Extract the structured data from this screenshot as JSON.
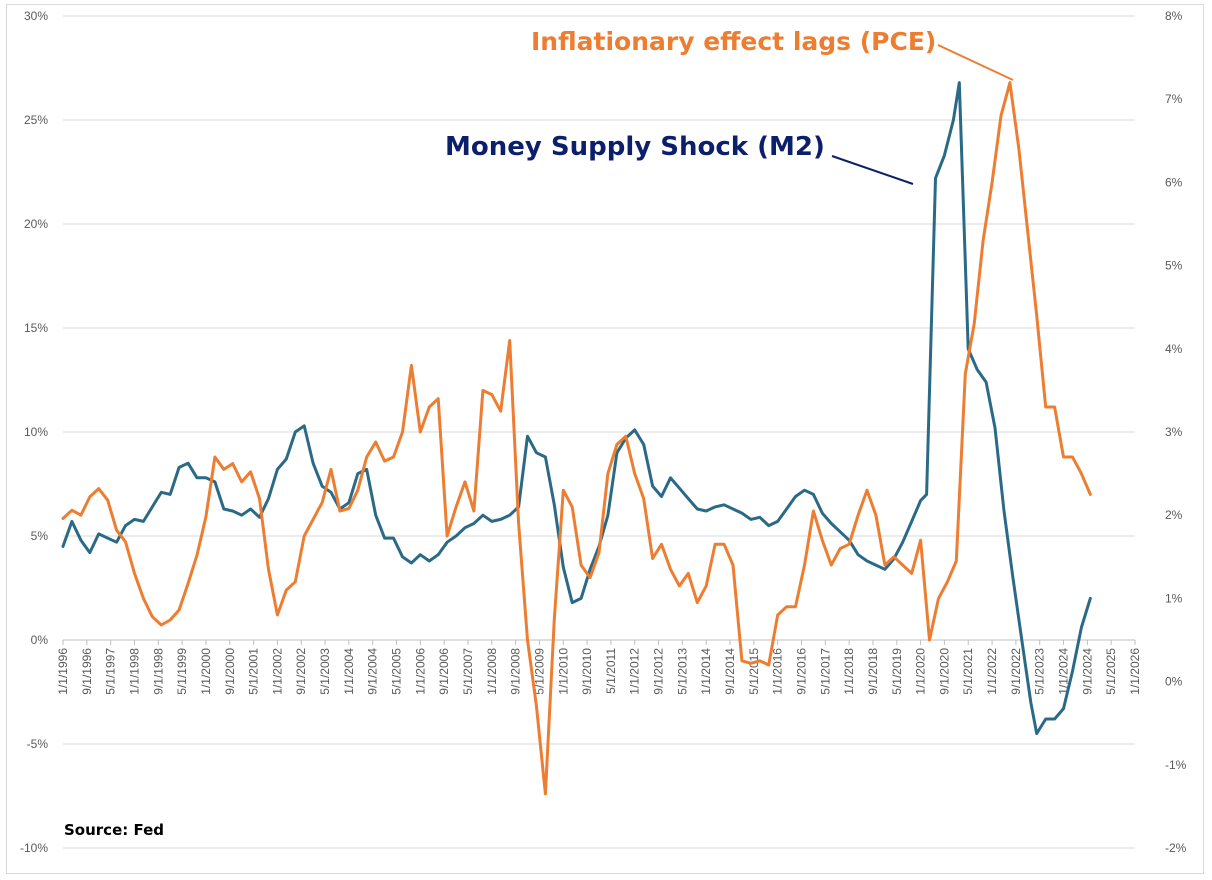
{
  "chart_data": {
    "type": "line",
    "title": "",
    "source": "Source: Fed",
    "grid": true,
    "colors": {
      "m2": "#2b6a87",
      "pce": "#ed7d31",
      "m2_annotation": "#0c1f6b"
    },
    "annotations": {
      "m2": "Money Supply Shock (M2)",
      "pce": "Inflationary effect lags (PCE)"
    },
    "y_left": {
      "min": -0.1,
      "max": 0.3,
      "ticks": [
        -0.1,
        -0.05,
        0.0,
        0.05,
        0.1,
        0.15,
        0.2,
        0.25,
        0.3
      ],
      "tick_labels": [
        "-10%",
        "-5%",
        "0%",
        "5%",
        "10%",
        "15%",
        "20%",
        "25%",
        "30%"
      ]
    },
    "y_right": {
      "min": -0.02,
      "max": 0.08,
      "ticks": [
        -0.02,
        -0.01,
        0.0,
        0.01,
        0.02,
        0.03,
        0.04,
        0.05,
        0.06,
        0.07,
        0.08
      ],
      "tick_labels": [
        "-2%",
        "-1%",
        "0%",
        "1%",
        "2%",
        "3%",
        "4%",
        "5%",
        "6%",
        "7%",
        "8%"
      ]
    },
    "x_axis": {
      "min": "1996-01",
      "max": "2026-01",
      "tick_labels": [
        "1/1/1996",
        "9/1/1996",
        "5/1/1997",
        "1/1/1998",
        "9/1/1998",
        "5/1/1999",
        "1/1/2000",
        "9/1/2000",
        "5/1/2001",
        "1/1/2002",
        "9/1/2002",
        "5/1/2003",
        "1/1/2004",
        "9/1/2004",
        "5/1/2005",
        "1/1/2006",
        "9/1/2006",
        "5/1/2007",
        "1/1/2008",
        "9/1/2008",
        "5/1/2009",
        "1/1/2010",
        "9/1/2010",
        "5/1/2011",
        "1/1/2012",
        "9/1/2012",
        "5/1/2013",
        "1/1/2014",
        "9/1/2014",
        "5/1/2015",
        "1/1/2016",
        "9/1/2016",
        "5/1/2017",
        "1/1/2018",
        "9/1/2018",
        "5/1/2019",
        "1/1/2020",
        "9/1/2020",
        "5/1/2021",
        "1/1/2022",
        "9/1/2022",
        "5/1/2023",
        "1/1/2024",
        "9/1/2024",
        "5/1/2025",
        "1/1/2026"
      ]
    },
    "series": [
      {
        "key": "m2",
        "axis": "left",
        "points": [
          [
            "1996-01",
            0.045
          ],
          [
            "1996-04",
            0.057
          ],
          [
            "1996-07",
            0.048
          ],
          [
            "1996-10",
            0.042
          ],
          [
            "1997-01",
            0.051
          ],
          [
            "1997-04",
            0.049
          ],
          [
            "1997-07",
            0.047
          ],
          [
            "1997-10",
            0.055
          ],
          [
            "1998-01",
            0.058
          ],
          [
            "1998-04",
            0.057
          ],
          [
            "1998-07",
            0.064
          ],
          [
            "1998-10",
            0.071
          ],
          [
            "1999-01",
            0.07
          ],
          [
            "1999-04",
            0.083
          ],
          [
            "1999-07",
            0.085
          ],
          [
            "1999-10",
            0.078
          ],
          [
            "2000-01",
            0.078
          ],
          [
            "2000-04",
            0.076
          ],
          [
            "2000-07",
            0.063
          ],
          [
            "2000-10",
            0.062
          ],
          [
            "2001-01",
            0.06
          ],
          [
            "2001-04",
            0.063
          ],
          [
            "2001-07",
            0.059
          ],
          [
            "2001-10",
            0.068
          ],
          [
            "2002-01",
            0.082
          ],
          [
            "2002-04",
            0.087
          ],
          [
            "2002-07",
            0.1
          ],
          [
            "2002-10",
            0.103
          ],
          [
            "2003-01",
            0.085
          ],
          [
            "2003-04",
            0.074
          ],
          [
            "2003-07",
            0.071
          ],
          [
            "2003-10",
            0.063
          ],
          [
            "2004-01",
            0.066
          ],
          [
            "2004-04",
            0.08
          ],
          [
            "2004-07",
            0.082
          ],
          [
            "2004-10",
            0.06
          ],
          [
            "2005-01",
            0.049
          ],
          [
            "2005-04",
            0.049
          ],
          [
            "2005-07",
            0.04
          ],
          [
            "2005-10",
            0.037
          ],
          [
            "2006-01",
            0.041
          ],
          [
            "2006-04",
            0.038
          ],
          [
            "2006-07",
            0.041
          ],
          [
            "2006-10",
            0.047
          ],
          [
            "2007-01",
            0.05
          ],
          [
            "2007-04",
            0.054
          ],
          [
            "2007-07",
            0.056
          ],
          [
            "2007-10",
            0.06
          ],
          [
            "2008-01",
            0.057
          ],
          [
            "2008-04",
            0.058
          ],
          [
            "2008-07",
            0.06
          ],
          [
            "2008-10",
            0.064
          ],
          [
            "2009-01",
            0.098
          ],
          [
            "2009-04",
            0.09
          ],
          [
            "2009-07",
            0.088
          ],
          [
            "2009-10",
            0.065
          ],
          [
            "2010-01",
            0.035
          ],
          [
            "2010-04",
            0.018
          ],
          [
            "2010-07",
            0.02
          ],
          [
            "2010-10",
            0.034
          ],
          [
            "2011-01",
            0.045
          ],
          [
            "2011-04",
            0.06
          ],
          [
            "2011-07",
            0.09
          ],
          [
            "2011-10",
            0.097
          ],
          [
            "2012-01",
            0.101
          ],
          [
            "2012-04",
            0.094
          ],
          [
            "2012-07",
            0.074
          ],
          [
            "2012-10",
            0.069
          ],
          [
            "2013-01",
            0.078
          ],
          [
            "2013-04",
            0.073
          ],
          [
            "2013-07",
            0.068
          ],
          [
            "2013-10",
            0.063
          ],
          [
            "2014-01",
            0.062
          ],
          [
            "2014-04",
            0.064
          ],
          [
            "2014-07",
            0.065
          ],
          [
            "2014-10",
            0.063
          ],
          [
            "2015-01",
            0.061
          ],
          [
            "2015-04",
            0.058
          ],
          [
            "2015-07",
            0.059
          ],
          [
            "2015-10",
            0.055
          ],
          [
            "2016-01",
            0.057
          ],
          [
            "2016-04",
            0.063
          ],
          [
            "2016-07",
            0.069
          ],
          [
            "2016-10",
            0.072
          ],
          [
            "2017-01",
            0.07
          ],
          [
            "2017-04",
            0.061
          ],
          [
            "2017-07",
            0.056
          ],
          [
            "2017-10",
            0.052
          ],
          [
            "2018-01",
            0.048
          ],
          [
            "2018-04",
            0.041
          ],
          [
            "2018-07",
            0.038
          ],
          [
            "2018-10",
            0.036
          ],
          [
            "2019-01",
            0.034
          ],
          [
            "2019-04",
            0.039
          ],
          [
            "2019-07",
            0.047
          ],
          [
            "2019-10",
            0.057
          ],
          [
            "2020-01",
            0.067
          ],
          [
            "2020-03",
            0.07
          ],
          [
            "2020-06",
            0.222
          ],
          [
            "2020-09",
            0.233
          ],
          [
            "2020-12",
            0.25
          ],
          [
            "2021-02",
            0.268
          ],
          [
            "2021-05",
            0.14
          ],
          [
            "2021-08",
            0.13
          ],
          [
            "2021-11",
            0.124
          ],
          [
            "2022-02",
            0.102
          ],
          [
            "2022-05",
            0.062
          ],
          [
            "2022-08",
            0.03
          ],
          [
            "2022-11",
            0.0
          ],
          [
            "2023-02",
            -0.03
          ],
          [
            "2023-04",
            -0.045
          ],
          [
            "2023-07",
            -0.038
          ],
          [
            "2023-10",
            -0.038
          ],
          [
            "2024-01",
            -0.033
          ],
          [
            "2024-04",
            -0.015
          ],
          [
            "2024-07",
            0.006
          ],
          [
            "2024-10",
            0.02
          ]
        ]
      },
      {
        "key": "pce",
        "axis": "right",
        "points": [
          [
            "1996-01",
            0.0196
          ],
          [
            "1996-04",
            0.0206
          ],
          [
            "1996-07",
            0.02
          ],
          [
            "1996-10",
            0.0222
          ],
          [
            "1997-01",
            0.0232
          ],
          [
            "1997-04",
            0.0218
          ],
          [
            "1997-07",
            0.0182
          ],
          [
            "1997-10",
            0.0168
          ],
          [
            "1998-01",
            0.013
          ],
          [
            "1998-04",
            0.01
          ],
          [
            "1998-07",
            0.0078
          ],
          [
            "1998-10",
            0.0068
          ],
          [
            "1999-01",
            0.0074
          ],
          [
            "1999-04",
            0.0086
          ],
          [
            "1999-07",
            0.0118
          ],
          [
            "1999-10",
            0.0152
          ],
          [
            "2000-01",
            0.0198
          ],
          [
            "2000-04",
            0.027
          ],
          [
            "2000-07",
            0.0255
          ],
          [
            "2000-10",
            0.0262
          ],
          [
            "2001-01",
            0.024
          ],
          [
            "2001-04",
            0.0252
          ],
          [
            "2001-07",
            0.022
          ],
          [
            "2001-10",
            0.0135
          ],
          [
            "2002-01",
            0.008
          ],
          [
            "2002-04",
            0.011
          ],
          [
            "2002-07",
            0.012
          ],
          [
            "2002-10",
            0.0175
          ],
          [
            "2003-01",
            0.0195
          ],
          [
            "2003-04",
            0.0215
          ],
          [
            "2003-07",
            0.0255
          ],
          [
            "2003-10",
            0.0205
          ],
          [
            "2004-01",
            0.0208
          ],
          [
            "2004-04",
            0.023
          ],
          [
            "2004-07",
            0.027
          ],
          [
            "2004-10",
            0.0288
          ],
          [
            "2005-01",
            0.0265
          ],
          [
            "2005-04",
            0.027
          ],
          [
            "2005-07",
            0.03
          ],
          [
            "2005-10",
            0.038
          ],
          [
            "2006-01",
            0.03
          ],
          [
            "2006-04",
            0.033
          ],
          [
            "2006-07",
            0.034
          ],
          [
            "2006-10",
            0.0175
          ],
          [
            "2007-01",
            0.021
          ],
          [
            "2007-04",
            0.024
          ],
          [
            "2007-07",
            0.0205
          ],
          [
            "2007-10",
            0.035
          ],
          [
            "2008-01",
            0.0345
          ],
          [
            "2008-04",
            0.0325
          ],
          [
            "2008-07",
            0.041
          ],
          [
            "2008-10",
            0.019
          ],
          [
            "2009-01",
            0.005
          ],
          [
            "2009-04",
            -0.003
          ],
          [
            "2009-07",
            -0.0135
          ],
          [
            "2009-10",
            0.0075
          ],
          [
            "2010-01",
            0.023
          ],
          [
            "2010-04",
            0.021
          ],
          [
            "2010-07",
            0.014
          ],
          [
            "2010-10",
            0.0125
          ],
          [
            "2011-01",
            0.0155
          ],
          [
            "2011-04",
            0.025
          ],
          [
            "2011-07",
            0.0285
          ],
          [
            "2011-10",
            0.0295
          ],
          [
            "2012-01",
            0.025
          ],
          [
            "2012-04",
            0.022
          ],
          [
            "2012-07",
            0.0148
          ],
          [
            "2012-10",
            0.0165
          ],
          [
            "2013-01",
            0.0135
          ],
          [
            "2013-04",
            0.0115
          ],
          [
            "2013-07",
            0.013
          ],
          [
            "2013-10",
            0.0095
          ],
          [
            "2014-01",
            0.0115
          ],
          [
            "2014-04",
            0.0165
          ],
          [
            "2014-07",
            0.0165
          ],
          [
            "2014-10",
            0.014
          ],
          [
            "2015-01",
            0.0025
          ],
          [
            "2015-04",
            0.0022
          ],
          [
            "2015-07",
            0.0025
          ],
          [
            "2015-10",
            0.002
          ],
          [
            "2016-01",
            0.008
          ],
          [
            "2016-04",
            0.009
          ],
          [
            "2016-07",
            0.009
          ],
          [
            "2016-10",
            0.014
          ],
          [
            "2017-01",
            0.0205
          ],
          [
            "2017-04",
            0.017
          ],
          [
            "2017-07",
            0.014
          ],
          [
            "2017-10",
            0.016
          ],
          [
            "2018-01",
            0.0165
          ],
          [
            "2018-04",
            0.02
          ],
          [
            "2018-07",
            0.023
          ],
          [
            "2018-10",
            0.02
          ],
          [
            "2019-01",
            0.014
          ],
          [
            "2019-04",
            0.015
          ],
          [
            "2019-07",
            0.014
          ],
          [
            "2019-10",
            0.013
          ],
          [
            "2020-01",
            0.017
          ],
          [
            "2020-04",
            0.005
          ],
          [
            "2020-07",
            0.01
          ],
          [
            "2020-10",
            0.012
          ],
          [
            "2021-01",
            0.0145
          ],
          [
            "2021-04",
            0.037
          ],
          [
            "2021-07",
            0.043
          ],
          [
            "2021-10",
            0.053
          ],
          [
            "2022-01",
            0.06
          ],
          [
            "2022-04",
            0.068
          ],
          [
            "2022-07",
            0.072
          ],
          [
            "2022-10",
            0.064
          ],
          [
            "2023-01",
            0.054
          ],
          [
            "2023-04",
            0.044
          ],
          [
            "2023-07",
            0.033
          ],
          [
            "2023-10",
            0.033
          ],
          [
            "2024-01",
            0.027
          ],
          [
            "2024-04",
            0.027
          ],
          [
            "2024-07",
            0.025
          ],
          [
            "2024-10",
            0.0225
          ]
        ]
      }
    ]
  }
}
